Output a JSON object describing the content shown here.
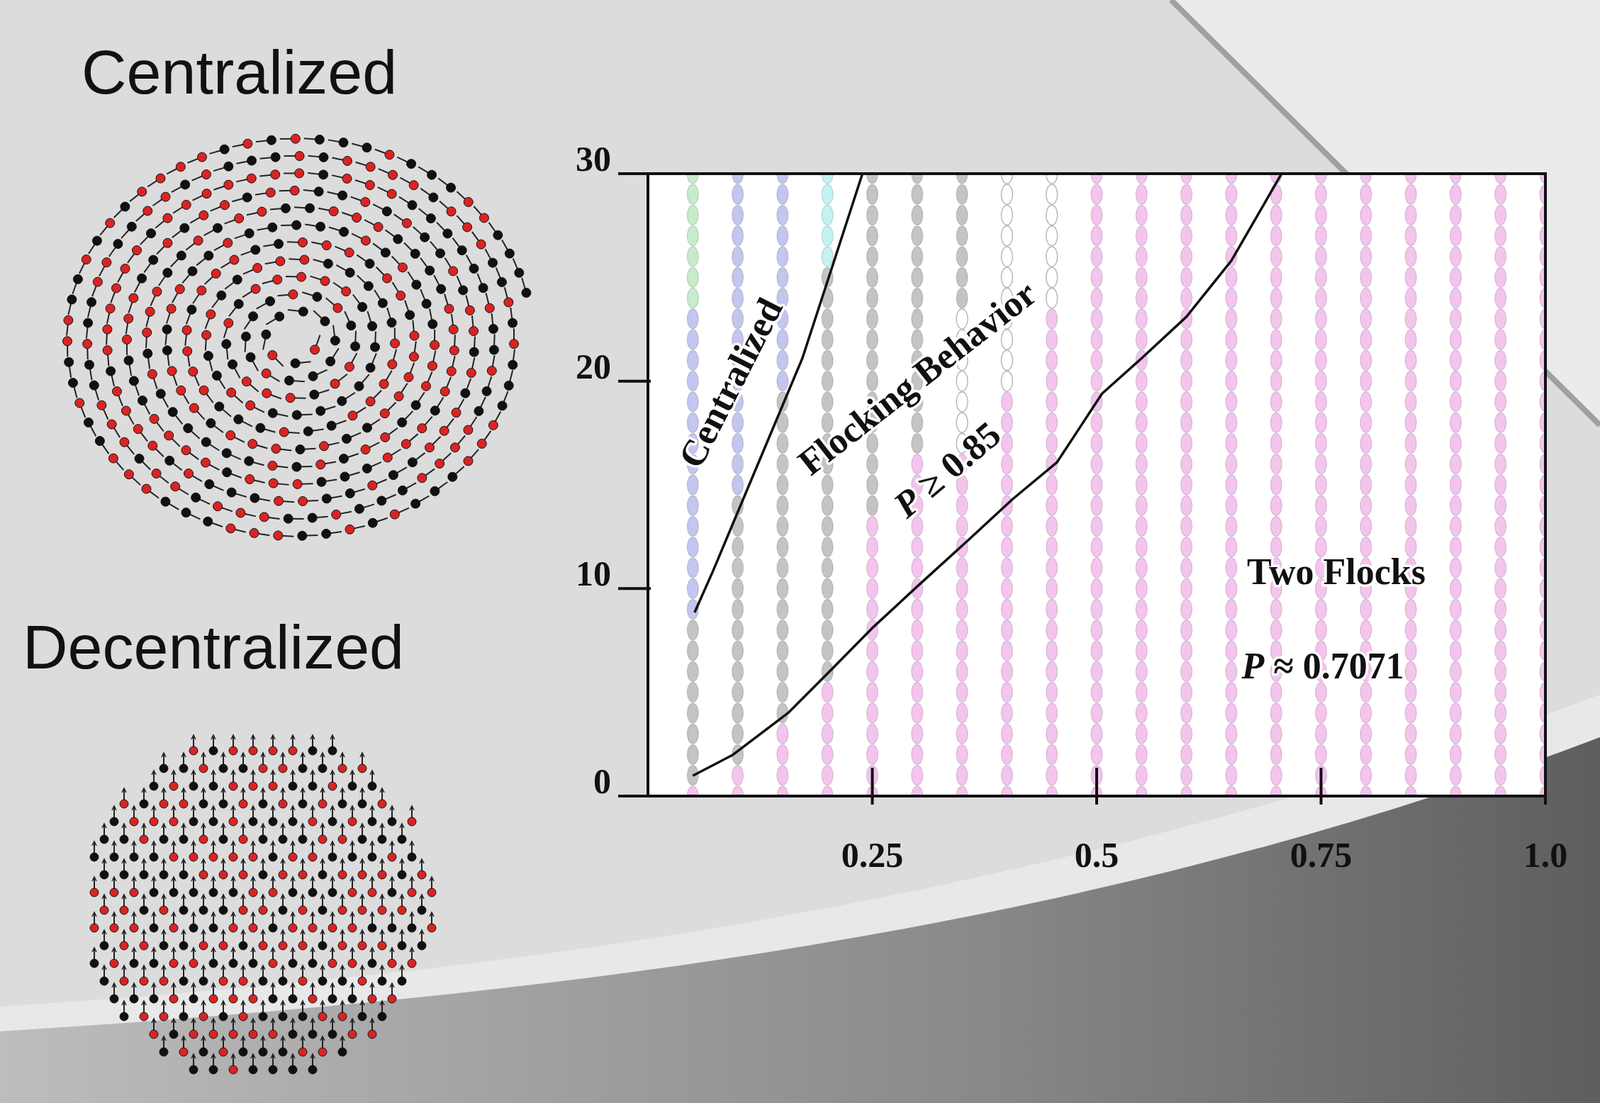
{
  "panels": [
    {
      "title": "Centralized"
    },
    {
      "title": "Decentralized"
    }
  ],
  "chart_data": {
    "type": "phase_diagram",
    "xlim": [
      0,
      1
    ],
    "ylim": [
      0,
      30
    ],
    "xticks": [
      0.25,
      0.5,
      0.75,
      {
        "value": 1,
        "label": "1.0"
      }
    ],
    "yticks": [
      0,
      10,
      20,
      30
    ],
    "annotations": [
      "Centralized",
      "Flocking Behavior",
      "P ≥ 0.85",
      "Two Flocks",
      "P ≈ 0.7071"
    ],
    "boundaries": [
      {
        "x": [
          0.052,
          0.072,
          0.106,
          0.139,
          0.172,
          0.206,
          0.239
        ],
        "values": [
          8.85,
          10.8,
          14.3,
          17.7,
          21.1,
          25.6,
          30
        ]
      },
      {
        "x": [
          0.05,
          0.094,
          0.156,
          0.2,
          0.25,
          0.3,
          0.356,
          0.406,
          0.456,
          0.506,
          0.55,
          0.6,
          0.65,
          0.706
        ],
        "values": [
          0.98,
          1.97,
          4.0,
          5.9,
          8.1,
          10.1,
          12.3,
          14.3,
          16.1,
          19.4,
          21.1,
          23.1,
          25.8,
          30
        ]
      }
    ],
    "grid_y": [
      0,
      1,
      2,
      3,
      4,
      5,
      6,
      7,
      8,
      9,
      10,
      11,
      12,
      13,
      14,
      15,
      16,
      17,
      18,
      19,
      20,
      21,
      22,
      23,
      24,
      25,
      26,
      27,
      28,
      29,
      30
    ],
    "columns": [
      {
        "x": 0.05,
        "segments": [
          {
            "from": 0,
            "to": 1,
            "color": "#f4c4ee"
          },
          {
            "from": 1,
            "to": 9,
            "color": "#c4c4c4"
          },
          {
            "from": 9,
            "to": 24,
            "color": "#c4c6f0"
          },
          {
            "from": 24,
            "to": 30,
            "color": "#c6eccb"
          }
        ]
      },
      {
        "x": 0.1,
        "segments": [
          {
            "from": 0,
            "to": 2,
            "color": "#f4c4ee"
          },
          {
            "from": 2,
            "to": 15,
            "color": "#c4c4c4"
          },
          {
            "from": 15,
            "to": 30,
            "color": "#c4c6f0"
          }
        ]
      },
      {
        "x": 0.15,
        "segments": [
          {
            "from": 0,
            "to": 4,
            "color": "#f4c4ee"
          },
          {
            "from": 4,
            "to": 20,
            "color": "#c4c4c4"
          },
          {
            "from": 20,
            "to": 30,
            "color": "#c4c6f0"
          }
        ]
      },
      {
        "x": 0.2,
        "segments": [
          {
            "from": 0,
            "to": 6,
            "color": "#f4c4ee"
          },
          {
            "from": 6,
            "to": 26,
            "color": "#c4c4c4"
          },
          {
            "from": 26,
            "to": 30,
            "color": "#c4f2f2"
          }
        ]
      },
      {
        "x": 0.25,
        "segments": [
          {
            "from": 0,
            "to": 14,
            "color": "#f4c4ee"
          },
          {
            "from": 14,
            "to": 30,
            "color": "#c4c4c4"
          }
        ]
      },
      {
        "x": 0.3,
        "segments": [
          {
            "from": 0,
            "to": 17,
            "color": "#f4c4ee"
          },
          {
            "from": 17,
            "to": 30,
            "color": "#c4c4c4"
          }
        ]
      },
      {
        "x": 0.35,
        "segments": [
          {
            "from": 0,
            "to": 17,
            "color": "#f4c4ee"
          },
          {
            "from": 17,
            "to": 24,
            "color": "#ffffff"
          },
          {
            "from": 24,
            "to": 30,
            "color": "#c4c4c4"
          }
        ]
      },
      {
        "x": 0.4,
        "segments": [
          {
            "from": 0,
            "to": 20,
            "color": "#f4c4ee"
          },
          {
            "from": 20,
            "to": 30,
            "color": "#ffffff"
          }
        ]
      },
      {
        "x": 0.45,
        "segments": [
          {
            "from": 0,
            "to": 24,
            "color": "#f4c4ee"
          },
          {
            "from": 24,
            "to": 30,
            "color": "#ffffff"
          }
        ]
      },
      {
        "x": 0.5,
        "segments": [
          {
            "from": 0,
            "to": 30,
            "color": "#f4c4ee"
          }
        ]
      },
      {
        "x": 0.55,
        "segments": [
          {
            "from": 0,
            "to": 30,
            "color": "#f4c4ee"
          }
        ]
      },
      {
        "x": 0.6,
        "segments": [
          {
            "from": 0,
            "to": 30,
            "color": "#f4c4ee"
          }
        ]
      },
      {
        "x": 0.65,
        "segments": [
          {
            "from": 0,
            "to": 30,
            "color": "#f4c4ee"
          }
        ]
      },
      {
        "x": 0.7,
        "segments": [
          {
            "from": 0,
            "to": 30,
            "color": "#f4c4ee"
          }
        ]
      },
      {
        "x": 0.75,
        "segments": [
          {
            "from": 0,
            "to": 30,
            "color": "#f4c4ee"
          }
        ]
      },
      {
        "x": 0.8,
        "segments": [
          {
            "from": 0,
            "to": 30,
            "color": "#f4c4ee"
          }
        ]
      },
      {
        "x": 0.85,
        "segments": [
          {
            "from": 0,
            "to": 30,
            "color": "#f4c4ee"
          }
        ]
      },
      {
        "x": 0.9,
        "segments": [
          {
            "from": 0,
            "to": 30,
            "color": "#f4c4ee"
          }
        ]
      },
      {
        "x": 0.95,
        "segments": [
          {
            "from": 0,
            "to": 30,
            "color": "#f4c4ee"
          }
        ]
      },
      {
        "x": 1.0,
        "segments": [
          {
            "from": 0,
            "to": 30,
            "color": "#f4c4ee"
          }
        ]
      }
    ]
  }
}
